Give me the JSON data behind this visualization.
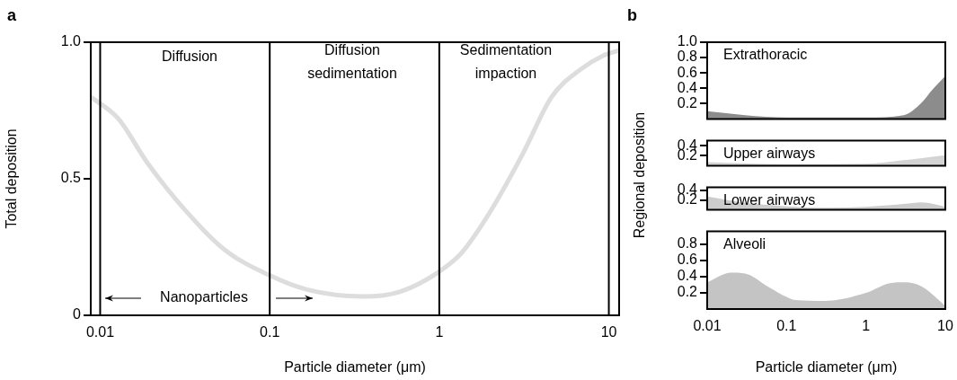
{
  "chart_data": [
    {
      "type": "line",
      "title": "a",
      "xlabel": "Particle diameter (μm)",
      "ylabel": "Total deposition",
      "log": "x",
      "xlim": [
        0.0088,
        11.5
      ],
      "xticks": [
        0.01,
        0.1,
        1,
        10
      ],
      "ylim": [
        0,
        1
      ],
      "yticks": [
        0,
        0.5,
        {
          "value": 1,
          "label": "1.0"
        }
      ],
      "ref_lines": [
        {
          "axis": "x",
          "value": 0.01,
          "color": "#000000"
        },
        {
          "axis": "x",
          "value": 0.1,
          "color": "#000000"
        },
        {
          "axis": "x",
          "value": 1,
          "color": "#000000"
        },
        {
          "axis": "x",
          "value": 10,
          "color": "#000000"
        }
      ],
      "annotations": [
        "Diffusion",
        "Diffusion\nsedimentation",
        "Sedimentation\nimpaction",
        "Nanoparticles"
      ],
      "series": [
        {
          "color": "#dddddd",
          "x": [
            0.0088,
            0.0128,
            0.0189,
            0.0312,
            0.0542,
            0.1,
            0.166,
            0.358,
            0.59,
            1,
            1.36,
            2.0,
            3.1,
            4.6,
            6.8,
            9.2,
            11.5
          ],
          "values": [
            0.8,
            0.72,
            0.56,
            0.39,
            0.24,
            0.146,
            0.094,
            0.069,
            0.087,
            0.16,
            0.23,
            0.38,
            0.59,
            0.8,
            0.9,
            0.95,
            0.97
          ]
        }
      ]
    },
    {
      "type": "area",
      "title": "b",
      "ylabel": "Regional deposition",
      "log": "x",
      "xlim": [
        0.01,
        10
      ],
      "xticks": [
        0.01,
        0.1,
        1,
        10
      ],
      "tick_labels": "y",
      "ylim": [
        0,
        1
      ],
      "yticks": [
        0.2,
        0.4,
        0.6,
        0.8,
        {
          "value": 1,
          "label": "1.0"
        }
      ],
      "series": [
        {
          "name": "Extrathoracic",
          "color": "#8c8c8c",
          "x": [
            0.01,
            0.03,
            0.1,
            1,
            3,
            5,
            7,
            10
          ],
          "values": [
            0.1,
            0.05,
            0.02,
            0.02,
            0.05,
            0.21,
            0.39,
            0.56
          ]
        }
      ]
    },
    {
      "type": "area",
      "log": "x",
      "xlim": [
        0.01,
        10
      ],
      "xticks": [
        0.01,
        0.1,
        1,
        10
      ],
      "tick_labels": "y",
      "ylim": [
        0,
        0.5
      ],
      "yticks": [
        0.2,
        0.4
      ],
      "series": [
        {
          "name": "Upper airways",
          "color": "#d3d3d3",
          "x": [
            0.01,
            0.1,
            1,
            3,
            10
          ],
          "values": [
            0.07,
            0.03,
            0.04,
            0.11,
            0.21
          ]
        }
      ]
    },
    {
      "type": "area",
      "log": "x",
      "xlim": [
        0.01,
        10
      ],
      "xticks": [
        0.01,
        0.1,
        1,
        10
      ],
      "tick_labels": "y",
      "ylim": [
        0,
        0.46
      ],
      "yticks": [
        0.2,
        0.4
      ],
      "series": [
        {
          "name": "Lower airways",
          "color": "#cccccc",
          "x": [
            0.01,
            0.03,
            0.1,
            0.3,
            1,
            3,
            5,
            7,
            10
          ],
          "values": [
            0.27,
            0.14,
            0.07,
            0.04,
            0.06,
            0.12,
            0.15,
            0.12,
            0.06
          ]
        }
      ]
    },
    {
      "type": "area",
      "xlabel": "Particle diameter (μm)",
      "log": "x",
      "xlim": [
        0.01,
        10
      ],
      "xticks": [
        0.01,
        0.1,
        1,
        10
      ],
      "ylim": [
        0,
        0.96
      ],
      "yticks": [
        0.2,
        0.4,
        0.6,
        0.8
      ],
      "series": [
        {
          "name": "Alveoli",
          "color": "#c4c4c4",
          "x": [
            0.01,
            0.02,
            0.03,
            0.06,
            0.1,
            0.13,
            0.3,
            1,
            2,
            3,
            5,
            10
          ],
          "values": [
            0.33,
            0.45,
            0.44,
            0.27,
            0.15,
            0.11,
            0.1,
            0.2,
            0.32,
            0.33,
            0.28,
            0.04
          ]
        }
      ]
    }
  ]
}
